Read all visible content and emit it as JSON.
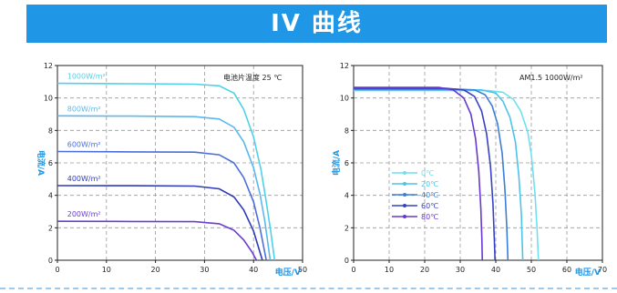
{
  "header": {
    "title": "IV 曲线",
    "bg_color": "#1f96e6"
  },
  "chart_data": [
    {
      "type": "line",
      "annotation": "电池片温度 25 ℃",
      "xlabel": "电压/V",
      "ylabel": "电流/A",
      "xlim": [
        0,
        50
      ],
      "ylim": [
        0,
        12
      ],
      "xticks": [
        0,
        10,
        20,
        30,
        40,
        50
      ],
      "yticks": [
        0,
        2,
        4,
        6,
        8,
        10,
        12
      ],
      "grid": true,
      "series": [
        {
          "name": "1000W/m²",
          "color": "#4fd1e9",
          "isc": 10.9,
          "voc": 44.3,
          "points": [
            [
              0,
              10.9
            ],
            [
              15,
              10.88
            ],
            [
              28,
              10.85
            ],
            [
              33,
              10.75
            ],
            [
              36,
              10.3
            ],
            [
              38,
              9.3
            ],
            [
              40,
              7.6
            ],
            [
              41.5,
              5.6
            ],
            [
              42.5,
              3.8
            ],
            [
              43.5,
              1.8
            ],
            [
              44.3,
              0
            ]
          ]
        },
        {
          "name": "800W/m²",
          "color": "#5bb8ee",
          "isc": 8.9,
          "voc": 43.4,
          "points": [
            [
              0,
              8.9
            ],
            [
              15,
              8.88
            ],
            [
              28,
              8.85
            ],
            [
              33,
              8.7
            ],
            [
              36,
              8.2
            ],
            [
              38,
              7.3
            ],
            [
              40,
              5.7
            ],
            [
              41.3,
              4.1
            ],
            [
              42.3,
              2.4
            ],
            [
              43.4,
              0
            ]
          ]
        },
        {
          "name": "600W/m²",
          "color": "#4a6fd8",
          "isc": 6.7,
          "voc": 42.6,
          "points": [
            [
              0,
              6.7
            ],
            [
              15,
              6.68
            ],
            [
              28,
              6.66
            ],
            [
              33,
              6.5
            ],
            [
              36,
              6.0
            ],
            [
              38,
              5.1
            ],
            [
              40,
              3.6
            ],
            [
              41.3,
              2.0
            ],
            [
              42.6,
              0
            ]
          ]
        },
        {
          "name": "400W/m²",
          "color": "#2f3bb8",
          "isc": 4.6,
          "voc": 41.8,
          "points": [
            [
              0,
              4.6
            ],
            [
              15,
              4.59
            ],
            [
              28,
              4.57
            ],
            [
              33,
              4.4
            ],
            [
              36,
              3.9
            ],
            [
              38,
              3.1
            ],
            [
              40,
              1.8
            ],
            [
              41.8,
              0
            ]
          ]
        },
        {
          "name": "200W/m²",
          "color": "#6a3dd4",
          "isc": 2.4,
          "voc": 40.6,
          "points": [
            [
              0,
              2.4
            ],
            [
              15,
              2.39
            ],
            [
              28,
              2.38
            ],
            [
              33,
              2.25
            ],
            [
              36,
              1.85
            ],
            [
              38,
              1.25
            ],
            [
              39.7,
              0.5
            ],
            [
              40.6,
              0
            ]
          ]
        }
      ]
    },
    {
      "type": "line",
      "annotation": "AM1.5 1000W/m²",
      "xlabel": "电压/V",
      "ylabel": "电流/A",
      "xlim": [
        0,
        70
      ],
      "ylim": [
        0,
        12
      ],
      "xticks": [
        0,
        10,
        20,
        30,
        40,
        50,
        60,
        70
      ],
      "yticks": [
        0,
        2,
        4,
        6,
        8,
        10,
        12
      ],
      "grid": true,
      "legend_position": "bottom-left",
      "series": [
        {
          "name": "0℃",
          "color": "#6fe0ee",
          "points": [
            [
              0,
              10.45
            ],
            [
              30,
              10.45
            ],
            [
              38,
              10.45
            ],
            [
              42,
              10.35
            ],
            [
              45,
              9.9
            ],
            [
              47,
              9.2
            ],
            [
              49,
              7.9
            ],
            [
              50,
              6.5
            ],
            [
              51,
              4.2
            ],
            [
              51.6,
              2.0
            ],
            [
              52,
              0
            ]
          ]
        },
        {
          "name": "20℃",
          "color": "#4bc3ea",
          "points": [
            [
              0,
              10.5
            ],
            [
              30,
              10.5
            ],
            [
              36,
              10.5
            ],
            [
              40,
              10.3
            ],
            [
              42,
              9.8
            ],
            [
              44,
              8.8
            ],
            [
              45.5,
              7.3
            ],
            [
              46.5,
              5.2
            ],
            [
              47.2,
              2.8
            ],
            [
              47.6,
              0
            ]
          ]
        },
        {
          "name": "40℃",
          "color": "#3a7ed8",
          "points": [
            [
              0,
              10.55
            ],
            [
              28,
              10.55
            ],
            [
              34,
              10.5
            ],
            [
              37,
              10.2
            ],
            [
              39,
              9.5
            ],
            [
              40.5,
              8.4
            ],
            [
              41.8,
              6.6
            ],
            [
              42.6,
              4.3
            ],
            [
              43.1,
              2.0
            ],
            [
              43.4,
              0
            ]
          ]
        },
        {
          "name": "60℃",
          "color": "#3642c4",
          "points": [
            [
              0,
              10.6
            ],
            [
              26,
              10.6
            ],
            [
              31,
              10.5
            ],
            [
              34,
              10.1
            ],
            [
              36,
              9.2
            ],
            [
              37.4,
              7.8
            ],
            [
              38.5,
              5.8
            ],
            [
              39.2,
              3.5
            ],
            [
              39.6,
              1.3
            ],
            [
              39.8,
              0
            ]
          ]
        },
        {
          "name": "80℃",
          "color": "#6638d0",
          "points": [
            [
              0,
              10.65
            ],
            [
              24,
              10.65
            ],
            [
              28,
              10.5
            ],
            [
              31,
              10.0
            ],
            [
              33,
              9.0
            ],
            [
              34.3,
              7.5
            ],
            [
              35.2,
              5.5
            ],
            [
              35.8,
              3.2
            ],
            [
              36.1,
              1.2
            ],
            [
              36.2,
              0
            ]
          ]
        }
      ]
    }
  ]
}
